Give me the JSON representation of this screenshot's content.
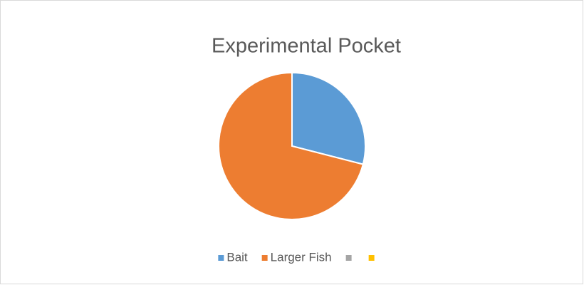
{
  "chart_data": {
    "type": "pie",
    "title": "Experimental Pocket",
    "categories": [
      "Bait",
      "Larger Fish",
      null,
      null
    ],
    "values": [
      29,
      71,
      0,
      0
    ],
    "colors": [
      "#5b9bd5",
      "#ed7d31",
      "#a5a5a5",
      "#ffc000"
    ],
    "legend": "bottom"
  }
}
